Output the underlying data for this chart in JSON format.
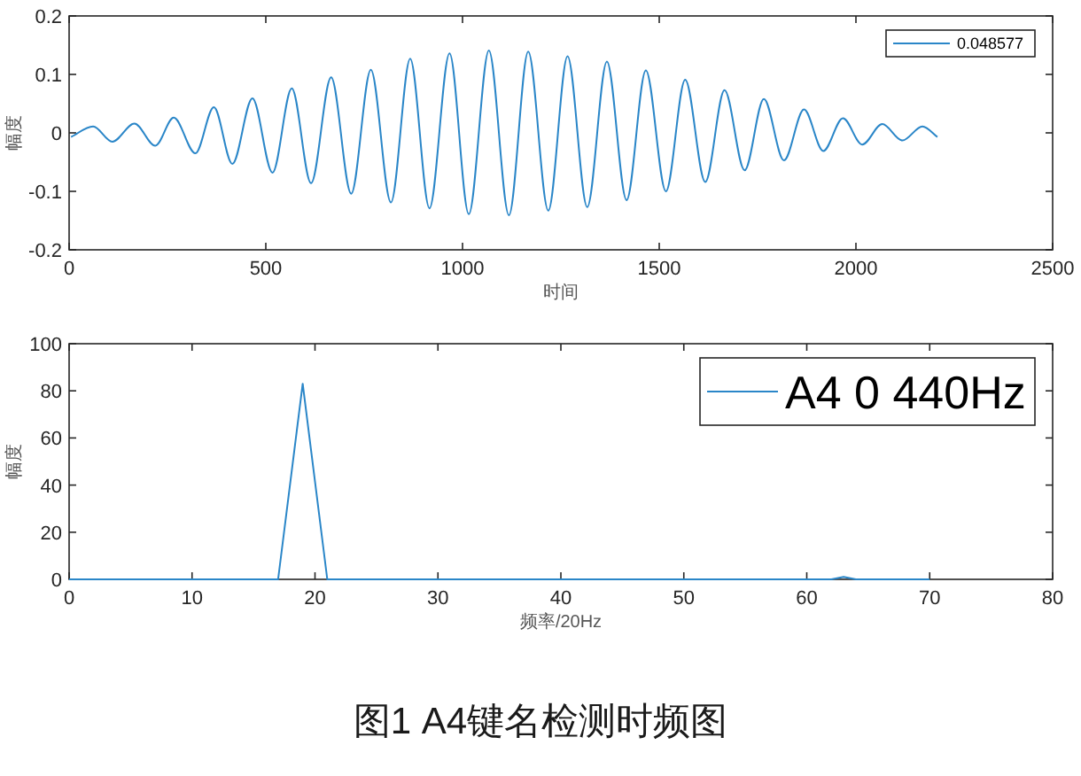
{
  "chart_data": [
    {
      "type": "line",
      "xlabel": "时间",
      "ylabel": "幅度",
      "xlim": [
        0,
        2500
      ],
      "xticks": [
        0,
        500,
        1000,
        1500,
        2000,
        2500
      ],
      "ylim": [
        -0.2,
        0.2
      ],
      "yticks": [
        -0.2,
        -0.1,
        0,
        0.1,
        0.2
      ],
      "legend": "top right",
      "x": [
        5,
        61,
        110,
        166,
        219,
        266,
        321,
        368,
        415,
        466,
        517,
        566,
        615,
        666,
        717,
        767,
        818,
        867,
        916,
        967,
        1016,
        1067,
        1118,
        1167,
        1218,
        1267,
        1317,
        1367,
        1417,
        1466,
        1517,
        1566,
        1617,
        1666,
        1717,
        1766,
        1817,
        1868,
        1917,
        1967,
        2016,
        2067,
        2118,
        2169,
        2207
      ],
      "series": [
        {
          "name": "0.048577",
          "color": "#2a86c8",
          "values": [
            -0.007,
            0.011,
            -0.015,
            0.016,
            -0.022,
            0.026,
            -0.035,
            0.044,
            -0.053,
            0.059,
            -0.068,
            0.076,
            -0.086,
            0.095,
            -0.104,
            0.108,
            -0.119,
            0.127,
            -0.129,
            0.136,
            -0.139,
            0.141,
            -0.141,
            0.139,
            -0.133,
            0.131,
            -0.127,
            0.122,
            -0.115,
            0.107,
            -0.1,
            0.091,
            -0.084,
            0.073,
            -0.064,
            0.058,
            -0.047,
            0.04,
            -0.031,
            0.025,
            -0.02,
            0.015,
            -0.013,
            0.011,
            -0.007
          ]
        }
      ]
    },
    {
      "type": "line",
      "xlabel": "频率/20Hz",
      "ylabel": "幅度",
      "xlim": [
        0,
        80
      ],
      "xticks": [
        0,
        10,
        20,
        30,
        40,
        50,
        60,
        70,
        80
      ],
      "ylim": [
        0,
        100
      ],
      "yticks": [
        0,
        20,
        40,
        60,
        80,
        100
      ],
      "legend": "top right",
      "x": [
        0,
        17,
        19,
        21,
        62,
        63,
        64,
        70
      ],
      "series": [
        {
          "name": "A4 0 440Hz",
          "color": "#2a86c8",
          "values": [
            0,
            0,
            83,
            0,
            0,
            1,
            0,
            0
          ]
        }
      ],
      "annotations": [
        "图1 A4键名检测时频图"
      ]
    }
  ]
}
